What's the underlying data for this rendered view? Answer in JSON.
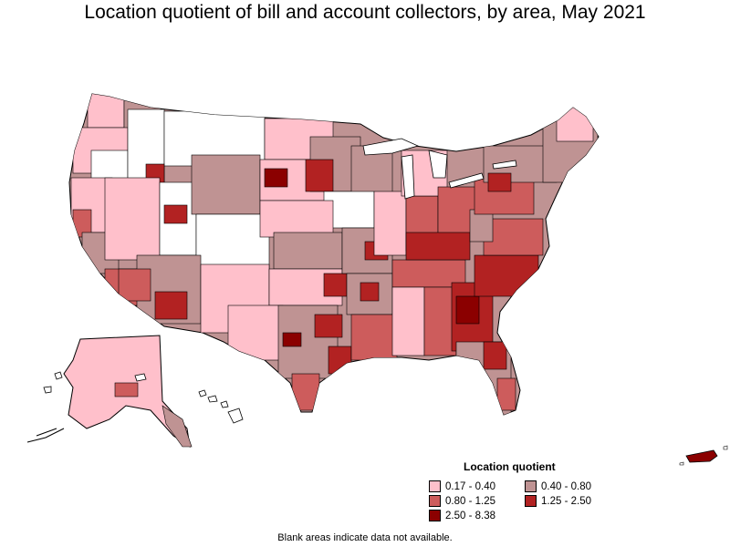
{
  "title": "Location quotient of bill and account collectors, by area, May 2021",
  "legend": {
    "title": "Location quotient",
    "items": [
      {
        "label": "0.17 - 0.40",
        "color": "#ffc0cb"
      },
      {
        "label": "0.40 - 0.80",
        "color": "#bf9393"
      },
      {
        "label": "0.80 - 1.25",
        "color": "#cd5c5c"
      },
      {
        "label": "1.25 - 2.50",
        "color": "#b22222"
      },
      {
        "label": "2.50 - 8.38",
        "color": "#8b0000"
      }
    ]
  },
  "footnote": "Blank areas indicate data not available.",
  "colors": {
    "no_data": "#ffffff",
    "border": "#000000"
  }
}
